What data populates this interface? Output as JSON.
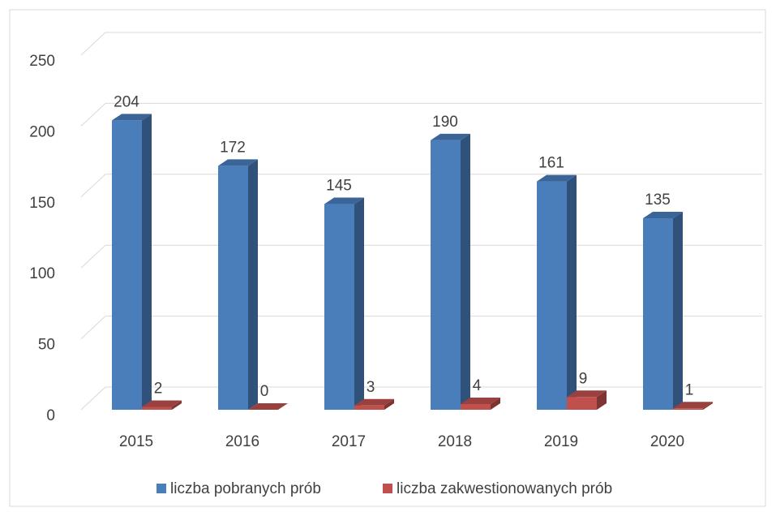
{
  "chart_data": {
    "type": "bar3d",
    "categories": [
      "2015",
      "2016",
      "2017",
      "2018",
      "2019",
      "2020"
    ],
    "series": [
      {
        "name": "liczba pobranych prób",
        "color": "#4a7ebb",
        "values": [
          204,
          172,
          145,
          190,
          161,
          135
        ]
      },
      {
        "name": "liczba zakwestionowanych prób",
        "color": "#c0504d",
        "values": [
          2,
          0,
          3,
          4,
          9,
          1
        ]
      }
    ],
    "ylim": [
      0,
      250
    ],
    "yticks": [
      0,
      50,
      100,
      150,
      200,
      250
    ],
    "grid": true,
    "legend": "bottom"
  }
}
